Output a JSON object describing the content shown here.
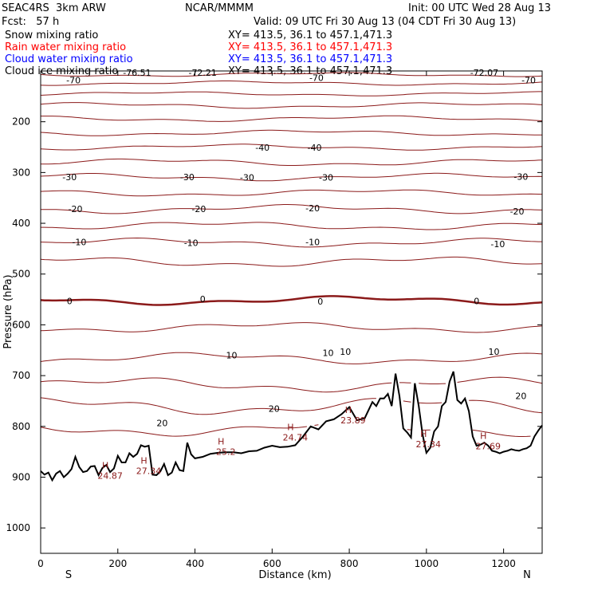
{
  "header": {
    "model": "SEAC4RS  3km ARW",
    "agency": "NCAR/MMMM",
    "init": "Init: 00 UTC Wed 28 Aug 13",
    "fcst": "Fcst:   57 h",
    "valid": "Valid: 09 UTC Fri 30 Aug 13 (04 CDT Fri 30 Aug 13)"
  },
  "fields": [
    {
      "label": "Snow mixing ratio",
      "xy": "XY= 413.5, 36.1 to 457.1,471.3",
      "color": "#000000"
    },
    {
      "label": "Rain water mixing ratio",
      "xy": "XY= 413.5, 36.1 to 457.1,471.3",
      "color": "#ff0000"
    },
    {
      "label": "Cloud water mixing ratio",
      "xy": "XY= 413.5, 36.1 to 457.1,471.3",
      "color": "#0000ff"
    },
    {
      "label": "Cloud ice mixing ratio",
      "xy": "XY= 413.5, 36.1 to 457.1,471.3",
      "color": "#000000"
    }
  ],
  "chart_data": {
    "type": "line",
    "xlabel": "Distance (km)",
    "ylabel": "Pressure (hPa)",
    "xlim": [
      0,
      1300
    ],
    "ylim": [
      1050,
      100
    ],
    "x_ticks": [
      0,
      200,
      400,
      600,
      800,
      1000,
      1200
    ],
    "y_ticks": [
      200,
      300,
      400,
      500,
      600,
      700,
      800,
      900,
      1000
    ],
    "x_end_labels": [
      "S",
      "N"
    ],
    "contour_color": "#8b1a1a",
    "terrain_color": "#000000",
    "terrain": {
      "x": [
        0,
        10,
        20,
        30,
        40,
        50,
        60,
        70,
        80,
        90,
        100,
        110,
        120,
        130,
        140,
        150,
        160,
        170,
        180,
        190,
        200,
        210,
        220,
        230,
        240,
        250,
        260,
        270,
        280,
        290,
        300,
        310,
        320,
        330,
        340,
        350,
        360,
        370,
        380,
        390,
        400,
        420,
        440,
        460,
        480,
        500,
        520,
        540,
        560,
        580,
        600,
        620,
        640,
        660,
        680,
        700,
        720,
        740,
        760,
        780,
        800,
        820,
        840,
        860,
        870,
        880,
        890,
        900,
        910,
        920,
        930,
        940,
        950,
        960,
        970,
        980,
        990,
        1000,
        1010,
        1020,
        1030,
        1040,
        1050,
        1060,
        1070,
        1080,
        1090,
        1100,
        1110,
        1120,
        1130,
        1140,
        1150,
        1160,
        1170,
        1180,
        1190,
        1200,
        1210,
        1220,
        1230,
        1240,
        1250,
        1260,
        1270,
        1280,
        1290,
        1300
      ],
      "y": [
        888,
        895,
        891,
        906,
        893,
        888,
        900,
        893,
        884,
        860,
        880,
        890,
        888,
        879,
        878,
        896,
        882,
        876,
        890,
        883,
        858,
        871,
        871,
        853,
        860,
        854,
        837,
        840,
        838,
        895,
        896,
        889,
        874,
        896,
        891,
        871,
        886,
        888,
        832,
        855,
        863,
        860,
        854,
        852,
        851,
        851,
        853,
        849,
        848,
        842,
        838,
        841,
        840,
        837,
        820,
        800,
        806,
        790,
        786,
        776,
        762,
        788,
        784,
        752,
        760,
        745,
        745,
        736,
        760,
        696,
        740,
        804,
        812,
        822,
        715,
        760,
        816,
        852,
        842,
        810,
        800,
        760,
        752,
        712,
        692,
        748,
        755,
        745,
        770,
        820,
        838,
        836,
        832,
        838,
        848,
        850,
        853,
        850,
        848,
        845,
        847,
        848,
        845,
        843,
        838,
        820,
        808,
        798
      ]
    },
    "isotherms": [
      {
        "level": -70,
        "base": 107,
        "amp": 3
      },
      {
        "level": -65,
        "base": 124,
        "amp": 3
      },
      {
        "level": -60,
        "base": 145,
        "amp": 3
      },
      {
        "level": -55,
        "base": 168,
        "amp": 4
      },
      {
        "level": -50,
        "base": 194,
        "amp": 4
      },
      {
        "level": -45,
        "base": 222,
        "amp": 4
      },
      {
        "level": -40,
        "base": 250,
        "amp": 4
      },
      {
        "level": -35,
        "base": 280,
        "amp": 5
      },
      {
        "level": -30,
        "base": 309,
        "amp": 5
      },
      {
        "level": -25,
        "base": 340,
        "amp": 5
      },
      {
        "level": -20,
        "base": 372,
        "amp": 6
      },
      {
        "level": -15,
        "base": 405,
        "amp": 6
      },
      {
        "level": -10,
        "base": 438,
        "amp": 6
      },
      {
        "level": -5,
        "base": 476,
        "amp": 7
      },
      {
        "level": 0,
        "base": 552,
        "amp": 6
      },
      {
        "level": 5,
        "base": 605,
        "amp": 7
      },
      {
        "level": 10,
        "base": 666,
        "amp": 8
      },
      {
        "level": 15,
        "base": 718,
        "amp": 10
      },
      {
        "level": 20,
        "base": 760,
        "amp": 12
      },
      {
        "level": 25,
        "base": 805,
        "amp": 10
      }
    ],
    "contour_labels": [
      {
        "text": "-70",
        "x": 85,
        "y": 118
      },
      {
        "text": "-70",
        "x": 715,
        "y": 113
      },
      {
        "text": "-70",
        "x": 1265,
        "y": 118
      },
      {
        "text": "-72.07",
        "x": 1150,
        "y": 103
      },
      {
        "text": "-76.51",
        "x": 250,
        "y": 103
      },
      {
        "text": "-72.21",
        "x": 420,
        "y": 103
      },
      {
        "text": "-40",
        "x": 575,
        "y": 251
      },
      {
        "text": "-40",
        "x": 710,
        "y": 251
      },
      {
        "text": "-30",
        "x": 75,
        "y": 309
      },
      {
        "text": "-30",
        "x": 380,
        "y": 309
      },
      {
        "text": "-30",
        "x": 535,
        "y": 310
      },
      {
        "text": "-30",
        "x": 740,
        "y": 310
      },
      {
        "text": "-30",
        "x": 1245,
        "y": 308
      },
      {
        "text": "-20",
        "x": 90,
        "y": 372
      },
      {
        "text": "-20",
        "x": 410,
        "y": 372
      },
      {
        "text": "-20",
        "x": 705,
        "y": 370
      },
      {
        "text": "-20",
        "x": 1235,
        "y": 376
      },
      {
        "text": "-10",
        "x": 100,
        "y": 437
      },
      {
        "text": "-10",
        "x": 390,
        "y": 438
      },
      {
        "text": "-10",
        "x": 705,
        "y": 437
      },
      {
        "text": "-10",
        "x": 1185,
        "y": 441
      },
      {
        "text": "0",
        "x": 75,
        "y": 553
      },
      {
        "text": "0",
        "x": 420,
        "y": 549
      },
      {
        "text": "0",
        "x": 725,
        "y": 554
      },
      {
        "text": "0",
        "x": 1130,
        "y": 553
      },
      {
        "text": "10",
        "x": 495,
        "y": 660
      },
      {
        "text": "10",
        "x": 745,
        "y": 655
      },
      {
        "text": "10",
        "x": 790,
        "y": 653
      },
      {
        "text": "10",
        "x": 1175,
        "y": 653
      },
      {
        "text": "20",
        "x": 315,
        "y": 793
      },
      {
        "text": "20",
        "x": 605,
        "y": 765
      },
      {
        "text": "20",
        "x": 1245,
        "y": 740
      }
    ],
    "high_labels": [
      {
        "text": "24.87",
        "x": 180,
        "y": 900
      },
      {
        "text": "27.34",
        "x": 280,
        "y": 891
      },
      {
        "text": "25.2",
        "x": 480,
        "y": 853
      },
      {
        "text": "24.74",
        "x": 660,
        "y": 825
      },
      {
        "text": "23.89",
        "x": 810,
        "y": 791
      },
      {
        "text": "27.34",
        "x": 1005,
        "y": 838
      },
      {
        "text": "27.69",
        "x": 1160,
        "y": 842
      }
    ]
  }
}
